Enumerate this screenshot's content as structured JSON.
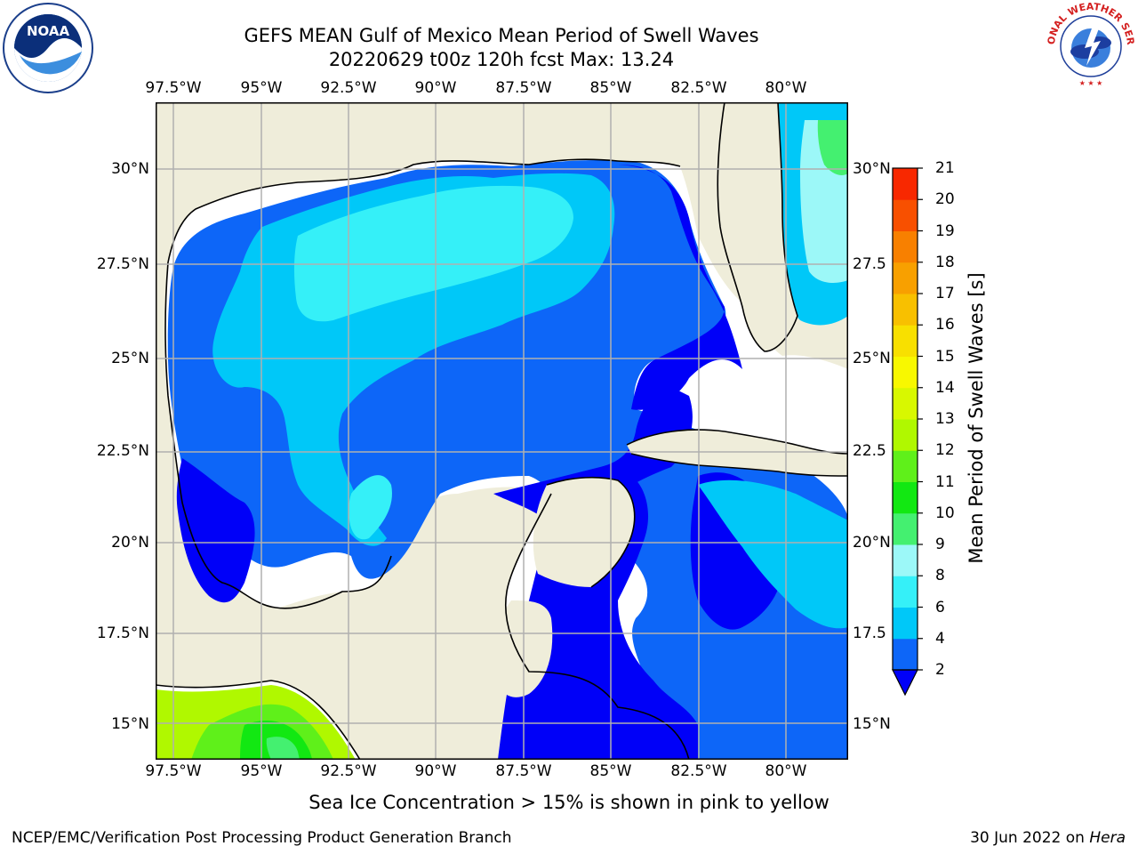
{
  "title": {
    "line1": "GEFS MEAN Gulf of Mexico Mean Period of Swell Waves",
    "line2": "20220629 t00z 120h fcst   Max: 13.24"
  },
  "map": {
    "lon_labels": [
      "97.5°W",
      "95°W",
      "92.5°W",
      "90°W",
      "87.5°W",
      "85°W",
      "82.5°W",
      "80°W"
    ],
    "lat_labels_left": [
      "30°N",
      "27.5°N",
      "25°N",
      "22.5°N",
      "20°N",
      "17.5°N",
      "15°N"
    ],
    "lat_labels_right": [
      "30°N",
      "27.5",
      "25°N",
      "22.5",
      "20°N",
      "17.5",
      "15°N"
    ],
    "land_color": "#efedda",
    "no_data_color": "#ffffff",
    "grid_color": "#b0b0b0"
  },
  "colorbar": {
    "label": "Mean Period of Swell Waves [s]",
    "tick_labels": [
      "2",
      "4",
      "6",
      "8",
      "9",
      "10",
      "11",
      "12",
      "13",
      "14",
      "15",
      "16",
      "17",
      "18",
      "19",
      "20",
      "21"
    ],
    "colors": [
      "#0d66f8",
      "#00c8f8",
      "#35f0f8",
      "#9cf8f8",
      "#44f070",
      "#12e812",
      "#5ff01a",
      "#b0f800",
      "#d8f800",
      "#f8f800",
      "#f8e000",
      "#f8c000",
      "#f8a000",
      "#f88000",
      "#f85000",
      "#f82800",
      "#f80000"
    ],
    "extend_color": "#0000f8"
  },
  "footer": {
    "sea_ice_note": "Sea Ice Concentration > 15% is shown in pink to yellow",
    "left": "NCEP/EMC/Verification Post Processing Product Generation Branch",
    "right_date": "30 Jun 2022 on ",
    "right_host": "Hera"
  },
  "logos": {
    "noaa_text": "NOAA",
    "nws_text": "NATIONAL WEATHER SERVICE"
  }
}
